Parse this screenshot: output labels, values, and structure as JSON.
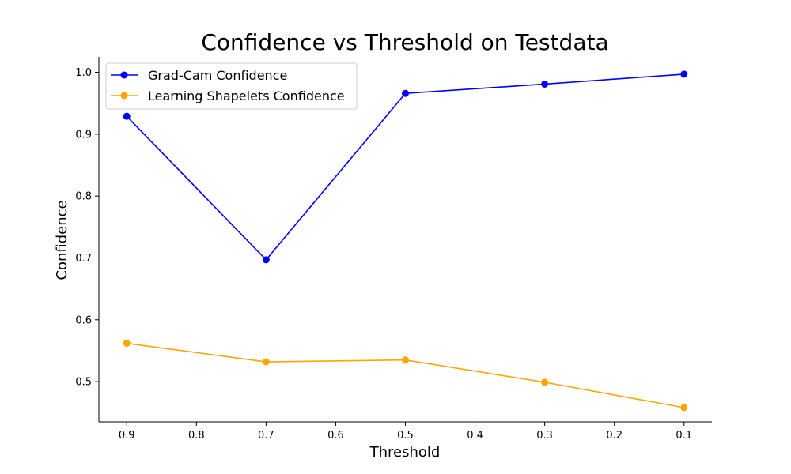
{
  "chart_data": {
    "type": "line",
    "title": "Confidence vs Threshold on Testdata",
    "xlabel": "Threshold",
    "ylabel": "Confidence",
    "x": [
      0.9,
      0.7,
      0.5,
      0.3,
      0.1
    ],
    "x_inverted": true,
    "xlim": [
      0.94,
      0.06
    ],
    "ylim": [
      0.435,
      1.025
    ],
    "xticks": [
      "0.9",
      "0.8",
      "0.7",
      "0.6",
      "0.5",
      "0.4",
      "0.3",
      "0.2",
      "0.1"
    ],
    "yticks": [
      "0.5",
      "0.6",
      "0.7",
      "0.8",
      "0.9",
      "1.0"
    ],
    "grid": false,
    "legend_position": "upper-left",
    "series": [
      {
        "name": "Grad-Cam Confidence",
        "values": [
          0.929,
          0.697,
          0.966,
          0.981,
          0.997
        ],
        "color": "#0000ff",
        "marker": "circle"
      },
      {
        "name": "Learning Shapelets Confidence",
        "values": [
          0.562,
          0.532,
          0.535,
          0.499,
          0.458
        ],
        "color": "#ffa500",
        "marker": "circle"
      }
    ]
  }
}
